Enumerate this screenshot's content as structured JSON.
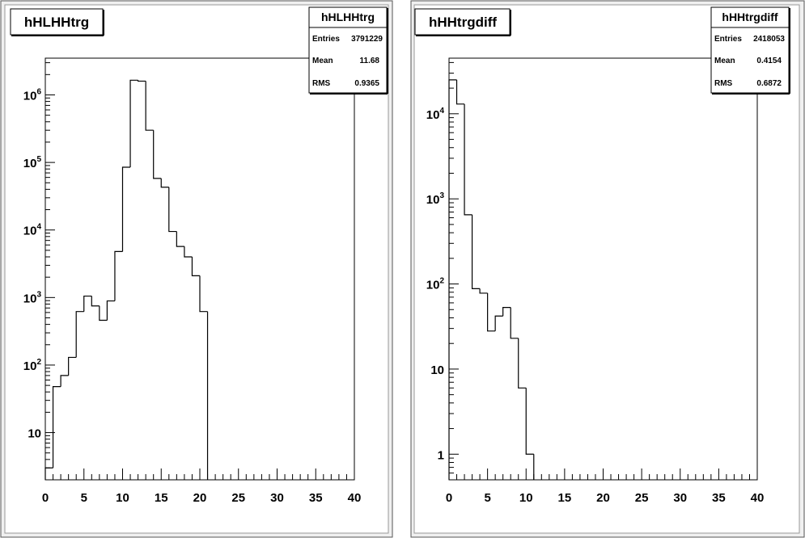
{
  "chart_data": [
    {
      "type": "histogram",
      "title": "hHLHHtrg",
      "stats": {
        "name": "hHLHHtrg",
        "rows": [
          {
            "label": "Entries",
            "value": "3791229"
          },
          {
            "label": "Mean",
            "value": "11.68"
          },
          {
            "label": "RMS",
            "value": "0.9365"
          }
        ]
      },
      "xlim": [
        0,
        40
      ],
      "ylim": [
        2,
        3500000
      ],
      "log_y": true,
      "bin_width": 1,
      "x_ticks": [
        "0",
        "5",
        "10",
        "15",
        "20",
        "25",
        "30",
        "35",
        "40"
      ],
      "y_ticks": [
        {
          "value": 10,
          "base": "10",
          "exp": ""
        },
        {
          "value": 100,
          "base": "10",
          "exp": "2"
        },
        {
          "value": 1000,
          "base": "10",
          "exp": "3"
        },
        {
          "value": 10000,
          "base": "10",
          "exp": "4"
        },
        {
          "value": 100000,
          "base": "10",
          "exp": "5"
        },
        {
          "value": 1000000,
          "base": "10",
          "exp": "6"
        }
      ],
      "bins": [
        {
          "x": 0,
          "y": 3
        },
        {
          "x": 1,
          "y": 48
        },
        {
          "x": 2,
          "y": 70
        },
        {
          "x": 3,
          "y": 130
        },
        {
          "x": 4,
          "y": 620
        },
        {
          "x": 5,
          "y": 1050
        },
        {
          "x": 6,
          "y": 750
        },
        {
          "x": 7,
          "y": 460
        },
        {
          "x": 8,
          "y": 890
        },
        {
          "x": 9,
          "y": 4800
        },
        {
          "x": 10,
          "y": 85000
        },
        {
          "x": 11,
          "y": 1650000
        },
        {
          "x": 12,
          "y": 1600000
        },
        {
          "x": 13,
          "y": 300000
        },
        {
          "x": 14,
          "y": 58000
        },
        {
          "x": 15,
          "y": 43000
        },
        {
          "x": 16,
          "y": 9500
        },
        {
          "x": 17,
          "y": 5700
        },
        {
          "x": 18,
          "y": 4000
        },
        {
          "x": 19,
          "y": 2100
        },
        {
          "x": 20,
          "y": 620
        }
      ]
    },
    {
      "type": "histogram",
      "title": "hHHtrgdiff",
      "stats": {
        "name": "hHHtrgdiff",
        "rows": [
          {
            "label": "Entries",
            "value": "2418053"
          },
          {
            "label": "Mean",
            "value": "0.4154"
          },
          {
            "label": "RMS",
            "value": "0.6872"
          }
        ]
      },
      "xlim": [
        0,
        40
      ],
      "ylim": [
        0.5,
        45000
      ],
      "log_y": true,
      "bin_width": 1,
      "x_ticks": [
        "0",
        "5",
        "10",
        "15",
        "20",
        "25",
        "30",
        "35",
        "40"
      ],
      "y_ticks": [
        {
          "value": 1,
          "base": "1",
          "exp": ""
        },
        {
          "value": 10,
          "base": "10",
          "exp": ""
        },
        {
          "value": 100,
          "base": "10",
          "exp": "2"
        },
        {
          "value": 1000,
          "base": "10",
          "exp": "3"
        },
        {
          "value": 10000,
          "base": "10",
          "exp": "4"
        }
      ],
      "bins": [
        {
          "x": 0,
          "y": 25000
        },
        {
          "x": 1,
          "y": 13000
        },
        {
          "x": 2,
          "y": 650
        },
        {
          "x": 3,
          "y": 88
        },
        {
          "x": 4,
          "y": 78
        },
        {
          "x": 5,
          "y": 28
        },
        {
          "x": 6,
          "y": 42
        },
        {
          "x": 7,
          "y": 53
        },
        {
          "x": 8,
          "y": 23
        },
        {
          "x": 9,
          "y": 6
        },
        {
          "x": 10,
          "y": 1
        }
      ]
    }
  ]
}
